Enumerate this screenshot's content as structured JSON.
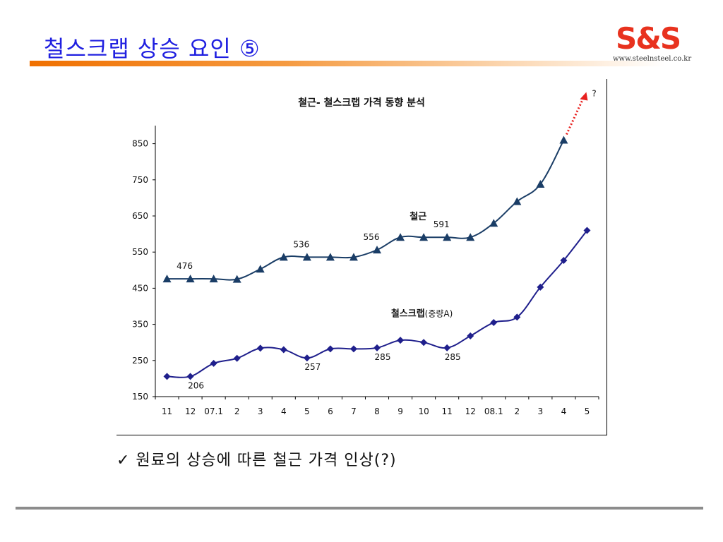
{
  "slide": {
    "title": "철스크랩 상승 요인 ⑤",
    "logo_mark": "S&S",
    "logo_url": "www.steelnsteel.co.kr",
    "caption": "✓ 원료의 상승에 따른 철근 가격 인상(?)"
  },
  "colors": {
    "title": "#1f1fe0",
    "rebar_series": "#1a3d66",
    "scrap_series": "#1f1f8c",
    "arrow": "#e8201e",
    "rule": "#f07000"
  },
  "chart_data": {
    "type": "line",
    "title": "철근- 철스크랩 가격 동향 분석",
    "categories": [
      "11",
      "12",
      "07.1",
      "2",
      "3",
      "4",
      "5",
      "6",
      "7",
      "8",
      "9",
      "10",
      "11",
      "12",
      "08.1",
      "2",
      "3",
      "4",
      "5"
    ],
    "ylim": [
      150,
      900
    ],
    "yticks": [
      150,
      250,
      350,
      450,
      550,
      650,
      750,
      850
    ],
    "grid": false,
    "series": [
      {
        "name": "철근",
        "marker": "triangle",
        "values": [
          476,
          476,
          476,
          475,
          503,
          536,
          536,
          536,
          536,
          556,
          591,
          591,
          591,
          591,
          630,
          690,
          738,
          860,
          null
        ]
      },
      {
        "name": "철스크랩(중량A)",
        "marker": "diamond",
        "values": [
          206,
          206,
          242,
          256,
          284,
          280,
          257,
          282,
          282,
          285,
          306,
          300,
          285,
          318,
          355,
          370,
          453,
          527,
          610
        ]
      }
    ],
    "annotations": [
      {
        "series": 0,
        "index": 1,
        "text": "476",
        "pos": "above"
      },
      {
        "series": 0,
        "index": 6,
        "text": "536",
        "pos": "above"
      },
      {
        "series": 0,
        "index": 9,
        "text": "556",
        "pos": "above"
      },
      {
        "series": 0,
        "index": 12,
        "text": "591",
        "pos": "above"
      },
      {
        "series": 1,
        "index": 1,
        "text": "206",
        "pos": "below"
      },
      {
        "series": 1,
        "index": 6,
        "text": "257",
        "pos": "below"
      },
      {
        "series": 1,
        "index": 9,
        "text": "285",
        "pos": "below"
      },
      {
        "series": 1,
        "index": 12,
        "text": "285",
        "pos": "below"
      }
    ],
    "forecast_label": "?"
  }
}
